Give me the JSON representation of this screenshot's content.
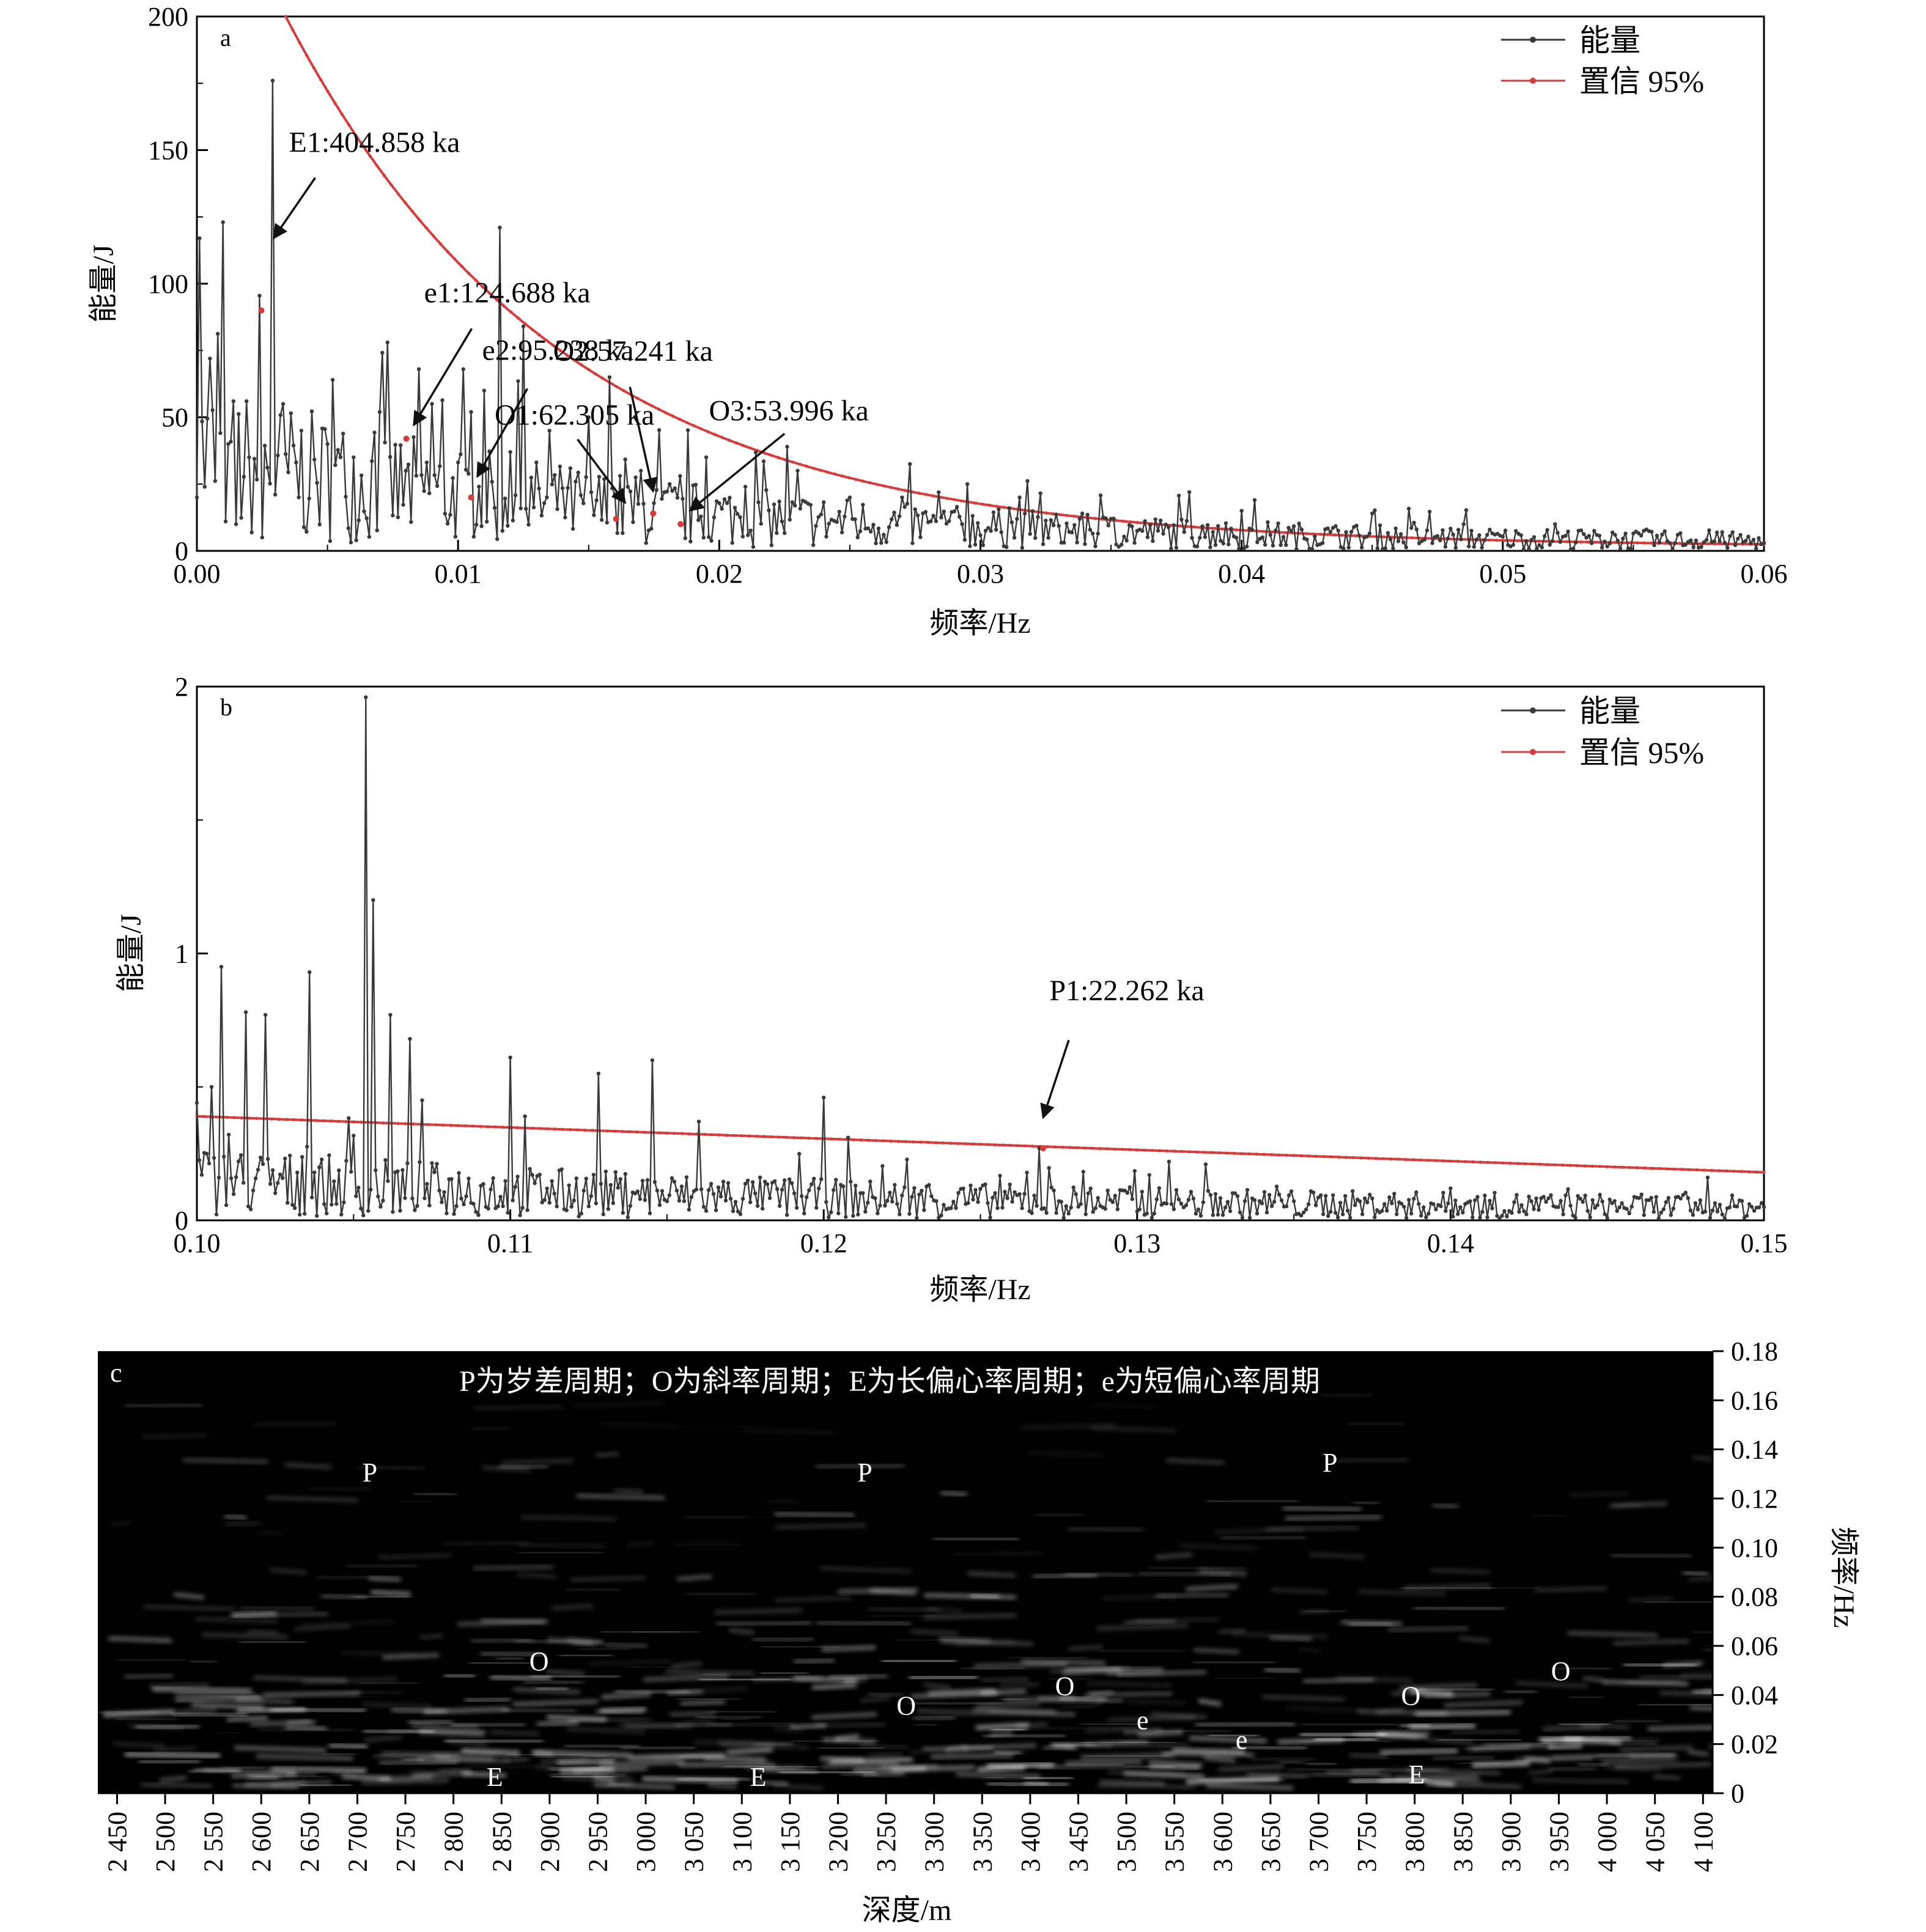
{
  "colors": {
    "energy": "#3a3a3a",
    "confidence": "#d83b3b",
    "arrow": "#111111",
    "spectrogram_bg": "#000000"
  },
  "legend": {
    "energy_label": "能量",
    "confidence_label": "置信 95%"
  },
  "chart_data": [
    {
      "panel": "a",
      "type": "line",
      "xlabel": "频率/Hz",
      "ylabel": "能量/J",
      "xlim": [
        0,
        0.06
      ],
      "ylim": [
        0,
        200
      ],
      "xticks": [
        "0.00",
        "0.01",
        "0.02",
        "0.03",
        "0.04",
        "0.05",
        "0.06"
      ],
      "yticks": [
        "0",
        "50",
        "100",
        "150",
        "200"
      ],
      "series": [
        {
          "name": "能量",
          "peaks": [
            [
              0.0,
              20
            ],
            [
              0.0001,
              117
            ],
            [
              0.0005,
              72
            ],
            [
              0.001,
              123
            ],
            [
              0.0012,
              40
            ],
            [
              0.0015,
              10
            ],
            [
              0.002,
              35
            ],
            [
              0.0025,
              5
            ],
            [
              0.0029,
              176
            ],
            [
              0.0033,
              55
            ],
            [
              0.004,
              45
            ],
            [
              0.005,
              40
            ],
            [
              0.0052,
              64
            ],
            [
              0.006,
              35
            ],
            [
              0.007,
              52
            ],
            [
              0.0073,
              78
            ],
            [
              0.008,
              30
            ],
            [
              0.0085,
              68
            ],
            [
              0.009,
              55
            ],
            [
              0.0105,
              52
            ],
            [
              0.011,
              60
            ],
            [
              0.0116,
              121
            ],
            [
              0.012,
              37
            ],
            [
              0.0125,
              84
            ],
            [
              0.0135,
              45
            ],
            [
              0.015,
              50
            ],
            [
              0.0158,
              65
            ],
            [
              0.017,
              30
            ],
            [
              0.0185,
              28
            ],
            [
              0.0195,
              35
            ],
            [
              0.021,
              24
            ],
            [
              0.0226,
              39
            ],
            [
              0.023,
              30
            ],
            [
              0.025,
              20
            ],
            [
              0.027,
              20
            ],
            [
              0.0295,
              25
            ],
            [
              0.0311,
              16
            ],
            [
              0.0315,
              20
            ],
            [
              0.035,
              12
            ],
            [
              0.038,
              22
            ],
            [
              0.04,
              15
            ],
            [
              0.045,
              14
            ],
            [
              0.0467,
              8
            ],
            [
              0.0485,
              10
            ],
            [
              0.052,
              10
            ],
            [
              0.0543,
              6
            ],
            [
              0.0555,
              8
            ],
            [
              0.06,
              3
            ]
          ]
        },
        {
          "name": "置信 95%",
          "decay": {
            "x_start": 0.0034,
            "y_start": 200,
            "y_at_0031": 16,
            "y_end": 1.5
          }
        }
      ],
      "annotations": [
        {
          "label": "E1:404.858 ka",
          "x": 0.00247,
          "y": 90
        },
        {
          "label": "e1:124.688 ka",
          "x": 0.00802,
          "y": 42
        },
        {
          "label": "e2:95.238 ka",
          "x": 0.0105,
          "y": 20
        },
        {
          "label": "O1:62.305 ka",
          "x": 0.01605,
          "y": 12
        },
        {
          "label": "O2:57.241 ka",
          "x": 0.01747,
          "y": 14
        },
        {
          "label": "O3:53.996 ka",
          "x": 0.01852,
          "y": 10
        }
      ]
    },
    {
      "panel": "b",
      "type": "line",
      "xlabel": "频率/Hz",
      "ylabel": "能量/J",
      "xlim": [
        0.1,
        0.15
      ],
      "ylim": [
        0,
        2
      ],
      "xticks": [
        "0.10",
        "0.11",
        "0.12",
        "0.13",
        "0.14",
        "0.15"
      ],
      "yticks": [
        "0",
        "1",
        "2"
      ],
      "series": [
        {
          "name": "能量",
          "peaks": [
            [
              0.1,
              0.44
            ],
            [
              0.1005,
              0.5
            ],
            [
              0.1008,
              0.95
            ],
            [
              0.1016,
              0.78
            ],
            [
              0.1022,
              0.77
            ],
            [
              0.1036,
              0.93
            ],
            [
              0.1054,
              1.96
            ],
            [
              0.1056,
              1.2
            ],
            [
              0.1062,
              0.77
            ],
            [
              0.1068,
              0.68
            ],
            [
              0.1072,
              0.45
            ],
            [
              0.11,
              0.61
            ],
            [
              0.1105,
              0.39
            ],
            [
              0.1128,
              0.55
            ],
            [
              0.1145,
              0.6
            ],
            [
              0.116,
              0.37
            ],
            [
              0.12,
              0.46
            ],
            [
              0.1208,
              0.31
            ],
            [
              0.1269,
              0.27
            ],
            [
              0.131,
              0.22
            ],
            [
              0.14,
              0.12
            ],
            [
              0.15,
              0.05
            ]
          ]
        },
        {
          "name": "置信 95%",
          "linear": [
            [
              0.1,
              0.39
            ],
            [
              0.15,
              0.18
            ]
          ]
        }
      ],
      "annotations": [
        {
          "label": "P1:22.262 ka",
          "x": 0.127,
          "y": 0.27
        }
      ]
    },
    {
      "panel": "c",
      "type": "heatmap",
      "title": "P为岁差周期；O为斜率周期；E为长偏心率周期；e为短偏心率周期",
      "xlabel": "深度/m",
      "ylabel": "频率/Hz",
      "xlim": [
        2430,
        4110
      ],
      "ylim": [
        0,
        0.18
      ],
      "xticks": [
        "2 450",
        "2 500",
        "2 550",
        "2 600",
        "2 650",
        "2 700",
        "2 750",
        "2 800",
        "2 850",
        "2 900",
        "2 950",
        "3 000",
        "3 050",
        "3 100",
        "3 150",
        "3 200",
        "3 250",
        "3 300",
        "3 350",
        "3 400",
        "3 450",
        "3 500",
        "3 550",
        "3 600",
        "3 650",
        "3 700",
        "3 750",
        "3 800",
        "3 850",
        "3 900",
        "3 950",
        "4 000",
        "4 050",
        "4 100"
      ],
      "yticks": [
        "0",
        "0.02",
        "0.04",
        "0.06",
        "0.08",
        "0.10",
        "0.12",
        "0.14",
        "0.16",
        "0.18"
      ],
      "labels": [
        {
          "text": "P",
          "depth": 2713,
          "freq": 0.131
        },
        {
          "text": "P",
          "depth": 3228,
          "freq": 0.131
        },
        {
          "text": "P",
          "depth": 3712,
          "freq": 0.135
        },
        {
          "text": "O",
          "depth": 2889,
          "freq": 0.054
        },
        {
          "text": "O",
          "depth": 3271,
          "freq": 0.036
        },
        {
          "text": "O",
          "depth": 3436,
          "freq": 0.044
        },
        {
          "text": "O",
          "depth": 3796,
          "freq": 0.04
        },
        {
          "text": "O",
          "depth": 3952,
          "freq": 0.05
        },
        {
          "text": "e",
          "depth": 3517,
          "freq": 0.03
        },
        {
          "text": "e",
          "depth": 3620,
          "freq": 0.022
        },
        {
          "text": "E",
          "depth": 2843,
          "freq": 0.007
        },
        {
          "text": "E",
          "depth": 3117,
          "freq": 0.007
        },
        {
          "text": "E",
          "depth": 3802,
          "freq": 0.008
        }
      ]
    }
  ]
}
